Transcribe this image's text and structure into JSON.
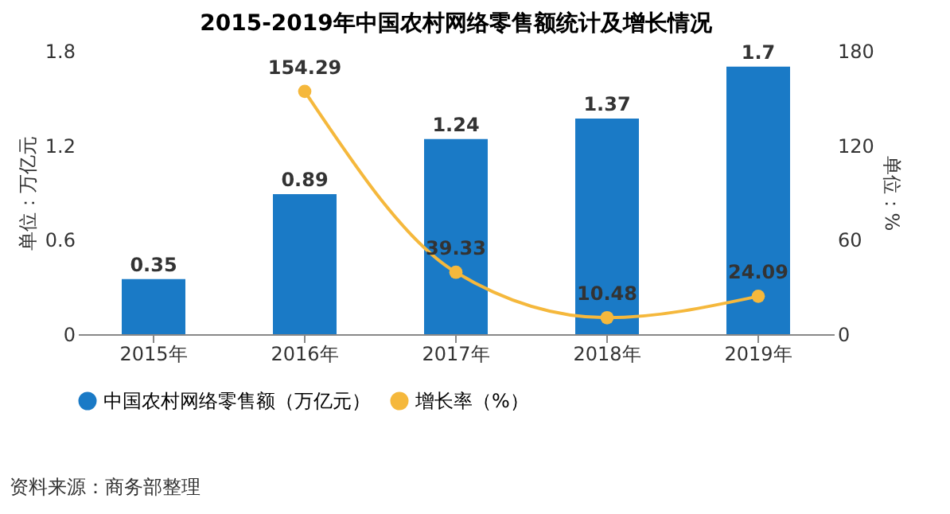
{
  "chart_data": {
    "type": "bar",
    "title": "2015-2019年中国农村网络零售额统计及增长情况",
    "ylabel": "单位：万亿元",
    "y2label": "单位：%",
    "categories": [
      "2015年",
      "2016年",
      "2017年",
      "2018年",
      "2019年"
    ],
    "series": [
      {
        "name": "中国农村网络零售额（万亿元）",
        "color": "#1a7ac6",
        "values": [
          0.35,
          0.89,
          1.24,
          1.37,
          1.7
        ]
      },
      {
        "name": "增长率（%）",
        "type": "line",
        "axis": "y2",
        "color": "#f5b83c",
        "values": [
          null,
          154.29,
          39.33,
          10.48,
          24.09
        ]
      }
    ],
    "ylim": [
      0,
      1.8
    ],
    "yticks": [
      0,
      0.6,
      1.2,
      1.8
    ],
    "y2lim": [
      0,
      180
    ],
    "y2ticks": [
      0,
      60,
      120,
      180
    ],
    "data_labels": true,
    "legend": "bottom",
    "marker": "circle",
    "annotations": [
      "资料来源：商务部整理"
    ]
  }
}
